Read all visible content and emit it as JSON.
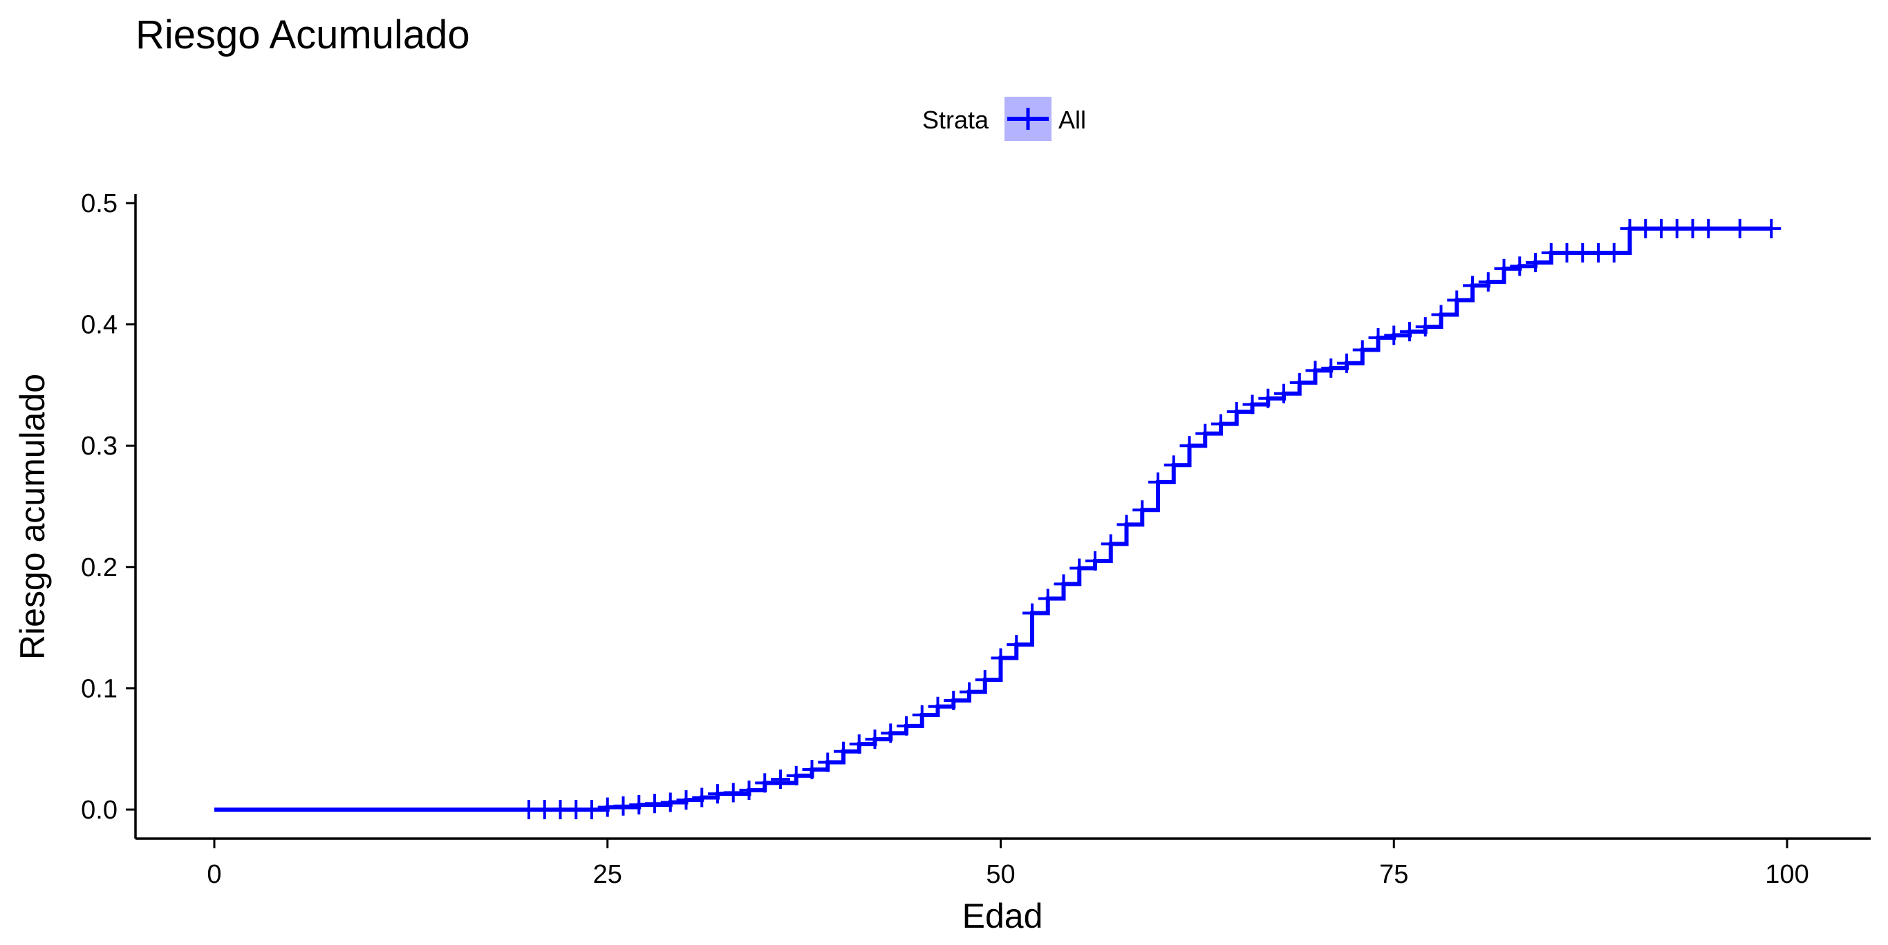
{
  "chart_data": {
    "type": "line",
    "title": "Riesgo Acumulado",
    "xlabel": "Edad",
    "ylabel": "Riesgo acumulado",
    "xlim": [
      0,
      100
    ],
    "ylim": [
      0,
      0.5
    ],
    "x_ticks": [
      0,
      25,
      50,
      75,
      100
    ],
    "y_ticks": [
      0.0,
      0.1,
      0.2,
      0.3,
      0.4,
      0.5
    ],
    "x_tick_labels": [
      "0",
      "25",
      "50",
      "75",
      "100"
    ],
    "y_tick_labels": [
      "0.0",
      "0.1",
      "0.2",
      "0.3",
      "0.4",
      "0.5"
    ],
    "grid": false,
    "legend": {
      "title": "Strata",
      "position": "top"
    },
    "series": [
      {
        "name": "All",
        "color": "#0000ff",
        "step_points": [
          [
            0,
            0.0
          ],
          [
            20,
            0.0
          ],
          [
            25,
            0.002
          ],
          [
            27,
            0.004
          ],
          [
            29,
            0.006
          ],
          [
            30,
            0.008
          ],
          [
            31,
            0.01
          ],
          [
            32,
            0.013
          ],
          [
            34,
            0.016
          ],
          [
            35,
            0.022
          ],
          [
            37,
            0.028
          ],
          [
            38,
            0.033
          ],
          [
            39,
            0.039
          ],
          [
            40,
            0.048
          ],
          [
            41,
            0.054
          ],
          [
            42,
            0.058
          ],
          [
            43,
            0.063
          ],
          [
            44,
            0.069
          ],
          [
            45,
            0.078
          ],
          [
            46,
            0.085
          ],
          [
            47,
            0.09
          ],
          [
            48,
            0.097
          ],
          [
            49,
            0.107
          ],
          [
            50,
            0.125
          ],
          [
            51,
            0.136
          ],
          [
            52,
            0.162
          ],
          [
            53,
            0.174
          ],
          [
            54,
            0.186
          ],
          [
            55,
            0.199
          ],
          [
            56,
            0.205
          ],
          [
            57,
            0.219
          ],
          [
            58,
            0.235
          ],
          [
            59,
            0.247
          ],
          [
            60,
            0.27
          ],
          [
            61,
            0.284
          ],
          [
            62,
            0.3
          ],
          [
            63,
            0.31
          ],
          [
            64,
            0.318
          ],
          [
            65,
            0.328
          ],
          [
            66,
            0.334
          ],
          [
            67,
            0.339
          ],
          [
            68,
            0.343
          ],
          [
            69,
            0.352
          ],
          [
            70,
            0.362
          ],
          [
            71,
            0.364
          ],
          [
            72,
            0.368
          ],
          [
            73,
            0.379
          ],
          [
            74,
            0.389
          ],
          [
            75,
            0.391
          ],
          [
            76,
            0.394
          ],
          [
            77,
            0.398
          ],
          [
            78,
            0.408
          ],
          [
            79,
            0.42
          ],
          [
            80,
            0.432
          ],
          [
            81,
            0.435
          ],
          [
            82,
            0.446
          ],
          [
            83,
            0.448
          ],
          [
            84,
            0.451
          ],
          [
            85,
            0.459
          ],
          [
            90,
            0.479
          ],
          [
            99,
            0.479
          ]
        ],
        "censor_points": [
          [
            20,
            0.0
          ],
          [
            21,
            0.0
          ],
          [
            22,
            0.0
          ],
          [
            23,
            0.0
          ],
          [
            24,
            0.0
          ],
          [
            25,
            0.002
          ],
          [
            26,
            0.003
          ],
          [
            27,
            0.004
          ],
          [
            28,
            0.005
          ],
          [
            29,
            0.006
          ],
          [
            30,
            0.008
          ],
          [
            31,
            0.01
          ],
          [
            32,
            0.013
          ],
          [
            33,
            0.014
          ],
          [
            34,
            0.016
          ],
          [
            35,
            0.022
          ],
          [
            36,
            0.025
          ],
          [
            37,
            0.028
          ],
          [
            38,
            0.033
          ],
          [
            39,
            0.039
          ],
          [
            40,
            0.048
          ],
          [
            41,
            0.054
          ],
          [
            42,
            0.058
          ],
          [
            43,
            0.063
          ],
          [
            44,
            0.069
          ],
          [
            45,
            0.078
          ],
          [
            46,
            0.085
          ],
          [
            47,
            0.09
          ],
          [
            48,
            0.097
          ],
          [
            49,
            0.107
          ],
          [
            50,
            0.125
          ],
          [
            51,
            0.136
          ],
          [
            52,
            0.162
          ],
          [
            53,
            0.174
          ],
          [
            54,
            0.186
          ],
          [
            55,
            0.199
          ],
          [
            56,
            0.205
          ],
          [
            57,
            0.219
          ],
          [
            58,
            0.235
          ],
          [
            59,
            0.247
          ],
          [
            60,
            0.27
          ],
          [
            61,
            0.284
          ],
          [
            62,
            0.3
          ],
          [
            63,
            0.31
          ],
          [
            64,
            0.318
          ],
          [
            65,
            0.328
          ],
          [
            66,
            0.334
          ],
          [
            67,
            0.339
          ],
          [
            68,
            0.343
          ],
          [
            69,
            0.352
          ],
          [
            70,
            0.362
          ],
          [
            71,
            0.364
          ],
          [
            72,
            0.368
          ],
          [
            73,
            0.379
          ],
          [
            74,
            0.389
          ],
          [
            75,
            0.391
          ],
          [
            76,
            0.394
          ],
          [
            77,
            0.398
          ],
          [
            78,
            0.408
          ],
          [
            79,
            0.42
          ],
          [
            80,
            0.432
          ],
          [
            81,
            0.435
          ],
          [
            82,
            0.446
          ],
          [
            83,
            0.448
          ],
          [
            84,
            0.451
          ],
          [
            85,
            0.459
          ],
          [
            86,
            0.459
          ],
          [
            87,
            0.459
          ],
          [
            88,
            0.459
          ],
          [
            89,
            0.459
          ],
          [
            90,
            0.479
          ],
          [
            91,
            0.479
          ],
          [
            92,
            0.479
          ],
          [
            93,
            0.479
          ],
          [
            94,
            0.479
          ],
          [
            95,
            0.479
          ],
          [
            97,
            0.479
          ],
          [
            99,
            0.479
          ]
        ]
      }
    ]
  }
}
